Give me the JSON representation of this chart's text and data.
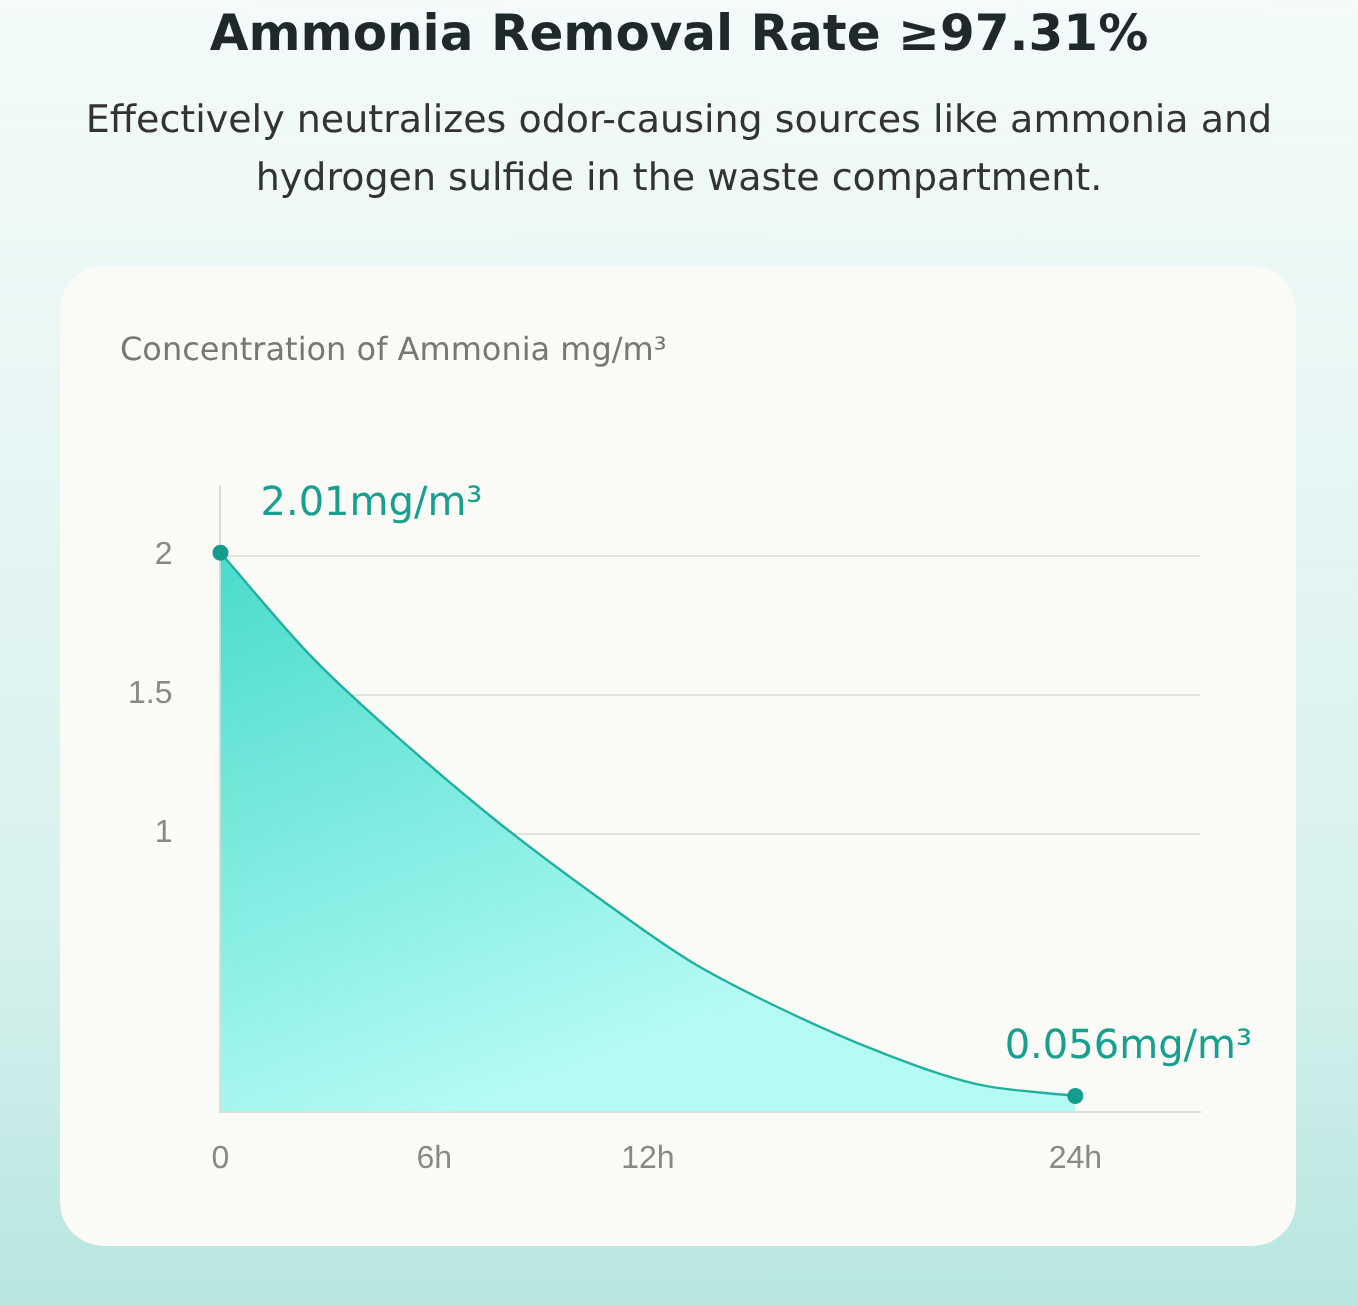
{
  "chart_data": {
    "type": "area",
    "title": "Ammonia Removal Rate ≥97.31%",
    "subtitle": "Effectively neutralizes odor-causing sources like ammonia and hydrogen sulfide in the waste compartment.",
    "ylabel": "Concentration of Ammonia mg/m³",
    "x": [
      0,
      2.6,
      5.3,
      7.9,
      10.6,
      13.2,
      15.9,
      18.6,
      21.2,
      24
    ],
    "series": [
      {
        "color": "#3ed8c6",
        "values": [
          2.01,
          1.63,
          1.31,
          1.03,
          0.77,
          0.54,
          0.36,
          0.21,
          0.1,
          0.056
        ]
      }
    ],
    "xlim": [
      0,
      27.5
    ],
    "xticks": [
      {
        "value": 0,
        "label": "0"
      },
      {
        "value": 6,
        "label": "6h"
      },
      {
        "value": 12,
        "label": "12h"
      },
      {
        "value": 24,
        "label": "24h"
      }
    ],
    "ylim": [
      0,
      2.25
    ],
    "yticks": [
      1,
      1.5,
      2
    ],
    "grid": "y",
    "legend": false,
    "annotations": [
      {
        "text": "2.01mg/m³",
        "x": 0,
        "y": 2.01
      },
      {
        "text": "0.056mg/m³",
        "x": 24,
        "y": 0.056
      }
    ]
  }
}
